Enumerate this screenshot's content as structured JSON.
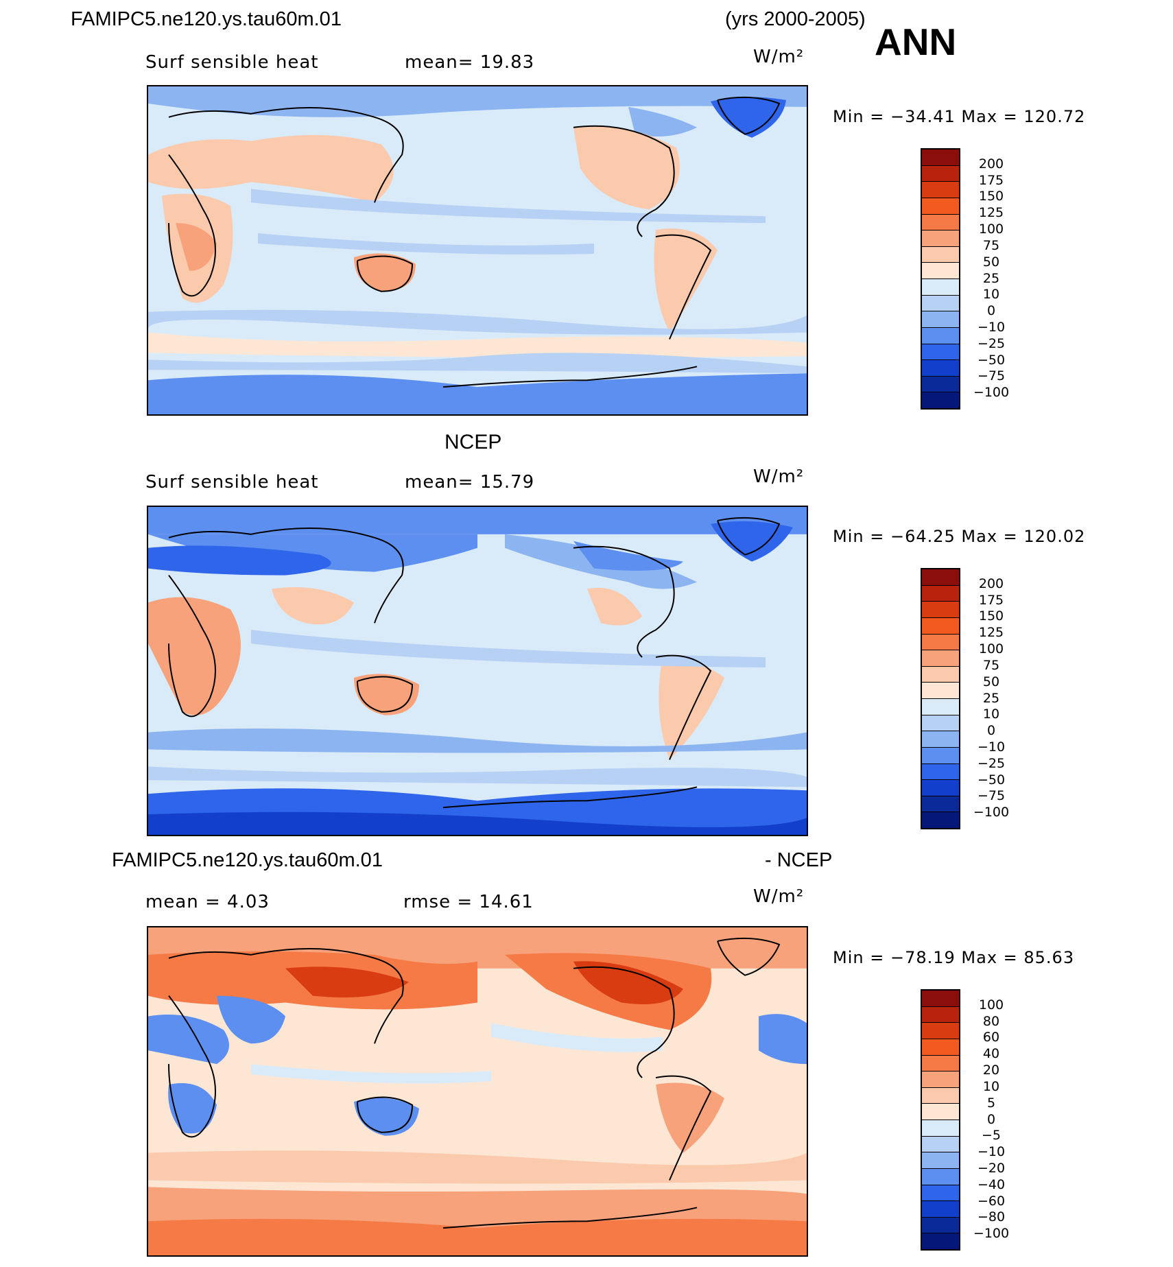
{
  "header": {
    "case_name": "FAMIPC5.ne120.ys.tau60m.01",
    "years": "(yrs 2000-2005)",
    "season": "ANN"
  },
  "panels": [
    {
      "id": "model",
      "title": "",
      "variable": "Surf sensible heat",
      "stat_left": "",
      "stat_right": "mean=  19.83",
      "units": "W/m²",
      "minmax": "Min = −34.41 Max = 120.72"
    },
    {
      "id": "obs",
      "title": "NCEP",
      "variable": "Surf sensible heat",
      "stat_left": "",
      "stat_right": "mean=  15.79",
      "units": "W/m²",
      "minmax": "Min = −64.25 Max = 120.02"
    },
    {
      "id": "diff",
      "title_left": "FAMIPC5.ne120.ys.tau60m.01",
      "title_right": "- NCEP",
      "stat_left": "mean =   4.03",
      "stat_right": "rmse =  14.61",
      "units": "W/m²",
      "minmax": "Min = −78.19 Max =  85.63"
    }
  ],
  "chart_data": [
    {
      "type": "heatmap",
      "title": "FAMIPC5.ne120.ys.tau60m.01",
      "subtitle": "Surf sensible heat",
      "mean": 19.83,
      "units": "W/m²",
      "min": -34.41,
      "max": 120.72,
      "colorbar_levels": [
        "200",
        "175",
        "150",
        "125",
        "100",
        "75",
        "50",
        "25",
        "10",
        "0",
        "−10",
        "−25",
        "−50",
        "−75",
        "−100"
      ],
      "colorbar_colors": [
        "#8c0e0a",
        "#b8230e",
        "#d93c10",
        "#f25a1f",
        "#f57a45",
        "#f7a27a",
        "#fbc9ab",
        "#fde7d4",
        "#d9eaf9",
        "#b6d1f3",
        "#8cb4f0",
        "#5c8ff0",
        "#2f65eb",
        "#1240cc",
        "#0a2a9a",
        "#05187a"
      ]
    },
    {
      "type": "heatmap",
      "title": "NCEP",
      "subtitle": "Surf sensible heat",
      "mean": 15.79,
      "units": "W/m²",
      "min": -64.25,
      "max": 120.02,
      "colorbar_levels": [
        "200",
        "175",
        "150",
        "125",
        "100",
        "75",
        "50",
        "25",
        "10",
        "0",
        "−10",
        "−25",
        "−50",
        "−75",
        "−100"
      ],
      "colorbar_colors": [
        "#8c0e0a",
        "#b8230e",
        "#d93c10",
        "#f25a1f",
        "#f57a45",
        "#f7a27a",
        "#fbc9ab",
        "#fde7d4",
        "#d9eaf9",
        "#b6d1f3",
        "#8cb4f0",
        "#5c8ff0",
        "#2f65eb",
        "#1240cc",
        "#0a2a9a",
        "#05187a"
      ]
    },
    {
      "type": "heatmap",
      "title": "FAMIPC5.ne120.ys.tau60m.01 - NCEP",
      "mean": 4.03,
      "rmse": 14.61,
      "units": "W/m²",
      "min": -78.19,
      "max": 85.63,
      "colorbar_levels": [
        "100",
        "80",
        "60",
        "40",
        "20",
        "10",
        "5",
        "0",
        "−5",
        "−10",
        "−20",
        "−40",
        "−60",
        "−80",
        "−100"
      ],
      "colorbar_colors": [
        "#8c0e0a",
        "#b8230e",
        "#d93c10",
        "#f25a1f",
        "#f57a45",
        "#f7a27a",
        "#fbc9ab",
        "#fde7d4",
        "#d9eaf9",
        "#b6d1f3",
        "#8cb4f0",
        "#5c8ff0",
        "#2f65eb",
        "#1240cc",
        "#0a2a9a",
        "#05187a"
      ]
    }
  ]
}
